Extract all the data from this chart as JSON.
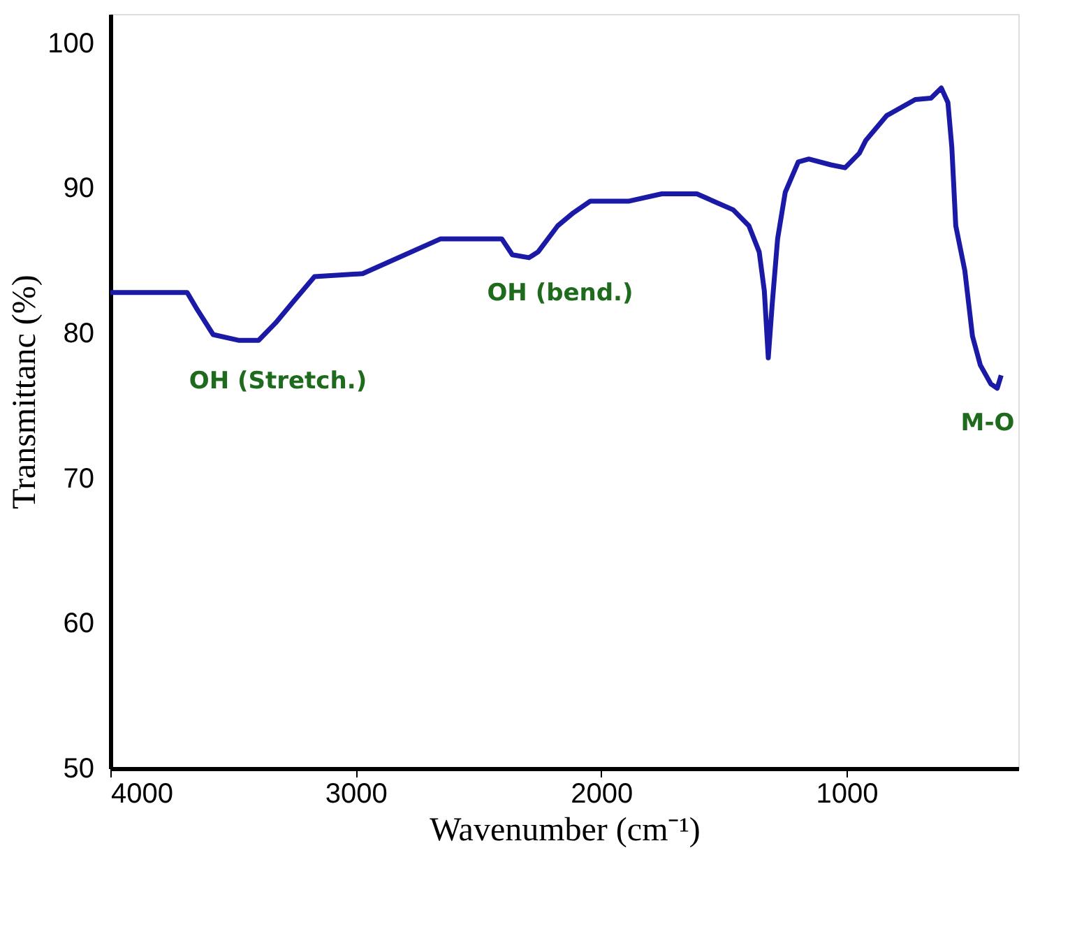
{
  "chart_data": {
    "type": "line",
    "xlabel": "Wavenumber (cm⁻¹)",
    "ylabel": "Transmittanc (%)",
    "x": [
      4000,
      3687,
      3645,
      3581,
      3475,
      3396,
      3327,
      3253,
      3168,
      2972,
      2654,
      2405,
      2362,
      2294,
      2257,
      2177,
      2113,
      2044,
      1886,
      1753,
      1610,
      1462,
      1398,
      1356,
      1335,
      1319,
      1303,
      1281,
      1250,
      1197,
      1154,
      1064,
      1006,
      948,
      921,
      836,
      720,
      656,
      614,
      587,
      571,
      555,
      518,
      487,
      455,
      412,
      386,
      370
    ],
    "series": [
      {
        "color": "#1a1aa6",
        "values": [
          82.8,
          82.8,
          81.6,
          79.9,
          79.5,
          79.5,
          80.7,
          82.2,
          83.9,
          84.1,
          86.5,
          86.5,
          85.4,
          85.2,
          85.6,
          87.4,
          88.3,
          89.1,
          89.1,
          89.6,
          89.6,
          88.5,
          87.4,
          85.6,
          82.9,
          78.3,
          82.0,
          86.5,
          89.7,
          91.8,
          92.0,
          91.6,
          91.4,
          92.4,
          93.3,
          95.0,
          96.1,
          96.2,
          96.9,
          95.9,
          92.8,
          87.4,
          84.3,
          79.8,
          77.8,
          76.5,
          76.2,
          77.1
        ]
      }
    ],
    "xlim": [
      4000,
      300
    ],
    "xticks": [
      4000,
      3000,
      2000,
      1000
    ],
    "ylim": [
      50,
      102
    ],
    "yticks": [
      50,
      60,
      70,
      80,
      90,
      100
    ],
    "grid": false,
    "marker": "none",
    "line_style": "solid",
    "annotations": [
      "OH (Stretch.)",
      "OH (bend.)",
      "M-O"
    ]
  }
}
